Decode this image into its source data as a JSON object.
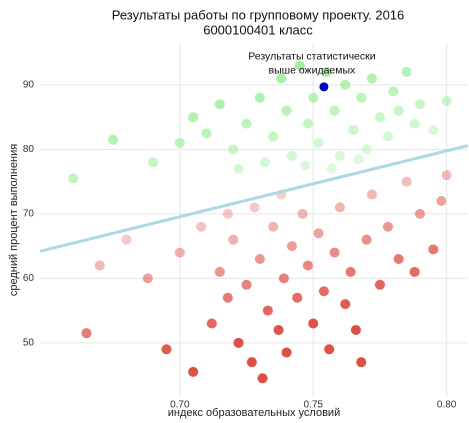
{
  "chart_data": {
    "type": "scatter",
    "title": "Результаты работы по групповому проекту. 2016",
    "subtitle": "6000100401 класс",
    "x_label": "индекс образовательных условий",
    "y_label": "средний процент выполнения",
    "xlim": [
      0.6476,
      0.808
    ],
    "ylim": [
      41.6,
      96.5
    ],
    "xticks": [
      {
        "value": 0.7,
        "label": "0.70"
      },
      0.75,
      {
        "value": 0.8,
        "label": "0.80"
      }
    ],
    "yticks": [
      50,
      60,
      70,
      80,
      90
    ],
    "grid": true,
    "above_color": "#90ee90",
    "below_color": "#e0443a",
    "x": [
      0.66,
      0.675,
      0.69,
      0.7,
      0.705,
      0.71,
      0.715,
      0.72,
      0.725,
      0.73,
      0.735,
      0.738,
      0.74,
      0.742,
      0.745,
      0.748,
      0.75,
      0.752,
      0.755,
      0.758,
      0.76,
      0.762,
      0.765,
      0.768,
      0.77,
      0.772,
      0.775,
      0.778,
      0.78,
      0.782,
      0.785,
      0.788,
      0.79,
      0.795,
      0.8,
      0.732,
      0.722,
      0.747,
      0.757,
      0.767,
      0.665,
      0.67,
      0.68,
      0.688,
      0.695,
      0.7,
      0.705,
      0.708,
      0.712,
      0.715,
      0.718,
      0.72,
      0.722,
      0.725,
      0.727,
      0.73,
      0.731,
      0.733,
      0.735,
      0.737,
      0.739,
      0.74,
      0.742,
      0.744,
      0.746,
      0.748,
      0.75,
      0.752,
      0.754,
      0.756,
      0.758,
      0.76,
      0.762,
      0.764,
      0.766,
      0.768,
      0.77,
      0.772,
      0.775,
      0.778,
      0.782,
      0.785,
      0.788,
      0.79,
      0.795,
      0.798,
      0.8,
      0.728,
      0.738,
      0.718
    ],
    "values": [
      75.5,
      81.5,
      78,
      81,
      85,
      82.5,
      87,
      80,
      84,
      88,
      82,
      91,
      86,
      79,
      93,
      84,
      88,
      81,
      92,
      86,
      79,
      90,
      83,
      88,
      80,
      91,
      85,
      82,
      89,
      86,
      92,
      84,
      87,
      83,
      87.5,
      78,
      77,
      77.5,
      77,
      78.5,
      51.5,
      62,
      66,
      60,
      49,
      64,
      45.5,
      68,
      53,
      61,
      57,
      66,
      50,
      59,
      47,
      63,
      44.5,
      55,
      68,
      52,
      60,
      48.5,
      65,
      57,
      70,
      62,
      53,
      67,
      58,
      49,
      64,
      71,
      56,
      61,
      52,
      47,
      66,
      73,
      59,
      68,
      63,
      75,
      61,
      70,
      64.5,
      72,
      76,
      71,
      73,
      70
    ],
    "trend": {
      "x": [
        0.6476,
        0.808
      ],
      "values": [
        64.2,
        80.6
      ],
      "color": "#add8e6"
    },
    "highlight": {
      "x": 0.754,
      "value": 89.7,
      "color": "#0000cc"
    },
    "annotation": [
      "Результаты статистически",
      "выше ожидаемых"
    ]
  }
}
